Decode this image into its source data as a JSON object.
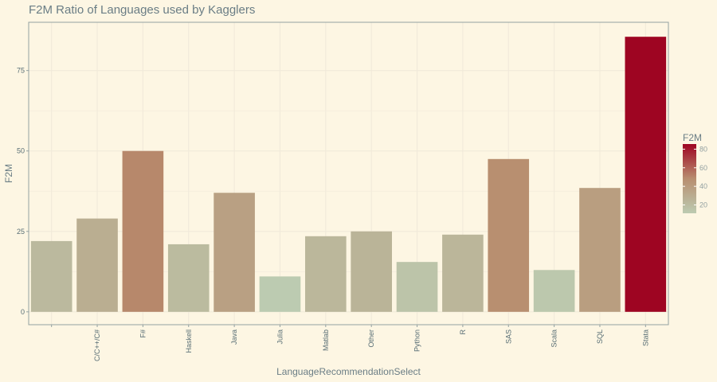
{
  "chart_data": {
    "type": "bar",
    "title": "F2M Ratio of Languages used by Kagglers",
    "xlabel": "LanguageRecommendationSelect",
    "ylabel": "F2M",
    "categories": [
      "",
      "C/C++/C#",
      "F#",
      "Haskell",
      "Java",
      "Julia",
      "Matlab",
      "Other",
      "Python",
      "R",
      "SAS",
      "Scala",
      "SQL",
      "Stata"
    ],
    "values": [
      22,
      29,
      50,
      21,
      37,
      11,
      23.5,
      25,
      15.5,
      24,
      47.5,
      13,
      38.5,
      85.5
    ],
    "ylim": [
      -4,
      90
    ],
    "yticks": [
      0,
      25,
      50,
      75
    ],
    "grid": true,
    "legend": {
      "title": "F2M",
      "position": "right",
      "ticks": [
        20,
        40,
        60,
        80
      ],
      "range": [
        11,
        85.5
      ],
      "low_color": "#bccbb1",
      "mid_color": "#b88e6f",
      "high_color": "#9e0522"
    },
    "colors": {
      "background": "#fdf6e3",
      "grid": "#f1eada",
      "axis": "#93a1a1"
    }
  }
}
